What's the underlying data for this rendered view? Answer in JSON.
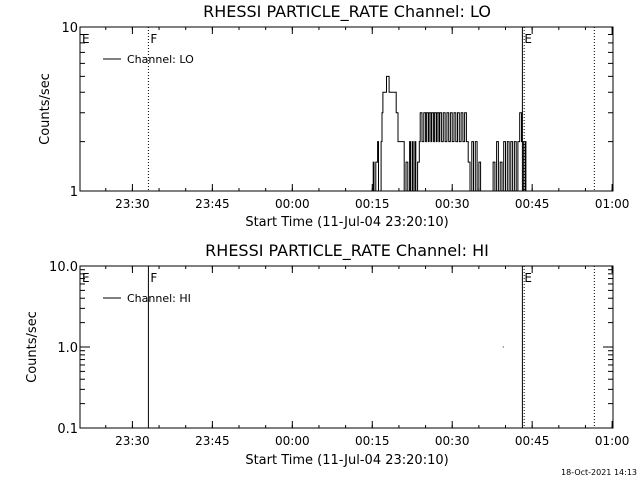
{
  "chart_data": [
    {
      "type": "line",
      "title": "RHESSI PARTICLE_RATE Channel: LO",
      "xlabel": "Start Time (11-Jul-04 23:20:10)",
      "ylabel": "Counts/sec",
      "yscale": "log",
      "ylim": [
        1,
        10
      ],
      "ytick_labels": [
        {
          "value": 1,
          "label": "1"
        },
        {
          "value": 10,
          "label": "10"
        }
      ],
      "xlim": [
        "23:20:10",
        "01:00:10"
      ],
      "xtick_labels": [
        {
          "time": "23:30",
          "label": "23:30"
        },
        {
          "time": "23:45",
          "label": "23:45"
        },
        {
          "time": "00:00",
          "label": "00:00"
        },
        {
          "time": "00:15",
          "label": "00:15"
        },
        {
          "time": "00:30",
          "label": "00:30"
        },
        {
          "time": "00:45",
          "label": "00:45"
        },
        {
          "time": "01:00",
          "label": "01:00"
        }
      ],
      "legend": {
        "placement": "top-left",
        "entries": [
          "Channel: LO"
        ]
      },
      "markers": [
        {
          "time": "23:20:10",
          "label": "E",
          "style": "solid"
        },
        {
          "time": "23:33:00",
          "label": "F",
          "style": "dotted"
        },
        {
          "time": "00:43:10",
          "label": "E",
          "style": "solid"
        },
        {
          "time": "00:43:30",
          "label": "",
          "style": "dotted"
        },
        {
          "time": "00:56:40",
          "label": "",
          "style": "dotted"
        }
      ],
      "series": [
        {
          "name": "Channel: LO",
          "points": [
            [
              "00:15:10",
              1
            ],
            [
              "00:15:10",
              1.5
            ],
            [
              "00:15:20",
              1.5
            ],
            [
              "00:15:20",
              1
            ],
            [
              "00:15:40",
              1
            ],
            [
              "00:15:40",
              1.5
            ],
            [
              "00:16:00",
              1.5
            ],
            [
              "00:16:00",
              2
            ],
            [
              "00:16:10",
              2
            ],
            [
              "00:16:10",
              1
            ],
            [
              "00:16:40",
              1
            ],
            [
              "00:16:40",
              2
            ],
            [
              "00:16:50",
              2
            ],
            [
              "00:16:50",
              3
            ],
            [
              "00:17:00",
              3
            ],
            [
              "00:17:00",
              4
            ],
            [
              "00:17:40",
              4
            ],
            [
              "00:17:40",
              5
            ],
            [
              "00:18:10",
              5
            ],
            [
              "00:18:10",
              4
            ],
            [
              "00:19:30",
              4
            ],
            [
              "00:19:30",
              3
            ],
            [
              "00:19:50",
              3
            ],
            [
              "00:19:50",
              2
            ],
            [
              "00:21:00",
              2
            ],
            [
              "00:21:00",
              1
            ],
            [
              "00:21:20",
              1
            ],
            [
              "00:21:20",
              1.5
            ],
            [
              "00:21:40",
              1.5
            ],
            [
              "00:21:40",
              1
            ],
            [
              "00:22:00",
              1
            ],
            [
              "00:22:00",
              2
            ],
            [
              "00:22:10",
              2
            ],
            [
              "00:22:10",
              1
            ],
            [
              "00:22:30",
              1
            ],
            [
              "00:22:30",
              2
            ],
            [
              "00:22:40",
              2
            ],
            [
              "00:22:40",
              1
            ],
            [
              "00:23:00",
              1
            ],
            [
              "00:23:00",
              2
            ],
            [
              "00:23:10",
              2
            ],
            [
              "00:23:10",
              1
            ],
            [
              "00:23:30",
              1
            ],
            [
              "00:23:30",
              1.5
            ],
            [
              "00:23:50",
              1.5
            ],
            [
              "00:23:50",
              2
            ],
            [
              "00:24:00",
              2
            ],
            [
              "00:24:00",
              3
            ],
            [
              "00:24:20",
              3
            ],
            [
              "00:24:20",
              2
            ],
            [
              "00:24:40",
              2
            ],
            [
              "00:24:40",
              3
            ],
            [
              "00:25:00",
              3
            ],
            [
              "00:25:00",
              2
            ],
            [
              "00:25:10",
              2
            ],
            [
              "00:25:10",
              3
            ],
            [
              "00:25:30",
              3
            ],
            [
              "00:25:30",
              2
            ],
            [
              "00:25:40",
              2
            ],
            [
              "00:25:40",
              3
            ],
            [
              "00:26:00",
              3
            ],
            [
              "00:26:00",
              2
            ],
            [
              "00:26:10",
              2
            ],
            [
              "00:26:10",
              3
            ],
            [
              "00:26:30",
              3
            ],
            [
              "00:26:30",
              2
            ],
            [
              "00:26:40",
              2
            ],
            [
              "00:26:40",
              3
            ],
            [
              "00:27:00",
              3
            ],
            [
              "00:27:00",
              2
            ],
            [
              "00:27:10",
              2
            ],
            [
              "00:27:10",
              3
            ],
            [
              "00:27:30",
              3
            ],
            [
              "00:27:30",
              2
            ],
            [
              "00:27:40",
              2
            ],
            [
              "00:27:40",
              3
            ],
            [
              "00:28:00",
              3
            ],
            [
              "00:28:00",
              2
            ],
            [
              "00:28:20",
              2
            ],
            [
              "00:28:20",
              3
            ],
            [
              "00:28:40",
              3
            ],
            [
              "00:28:40",
              2
            ],
            [
              "00:29:00",
              2
            ],
            [
              "00:29:00",
              3
            ],
            [
              "00:29:20",
              3
            ],
            [
              "00:29:20",
              2
            ],
            [
              "00:29:40",
              2
            ],
            [
              "00:29:40",
              3
            ],
            [
              "00:30:00",
              3
            ],
            [
              "00:30:00",
              2
            ],
            [
              "00:30:20",
              2
            ],
            [
              "00:30:20",
              3
            ],
            [
              "00:30:40",
              3
            ],
            [
              "00:30:40",
              2
            ],
            [
              "00:31:00",
              2
            ],
            [
              "00:31:00",
              3
            ],
            [
              "00:31:20",
              3
            ],
            [
              "00:31:20",
              2
            ],
            [
              "00:31:40",
              2
            ],
            [
              "00:31:40",
              3
            ],
            [
              "00:32:00",
              3
            ],
            [
              "00:32:00",
              2
            ],
            [
              "00:32:20",
              2
            ],
            [
              "00:32:20",
              3
            ],
            [
              "00:32:40",
              3
            ],
            [
              "00:32:40",
              2
            ],
            [
              "00:33:00",
              2
            ],
            [
              "00:33:00",
              1.5
            ],
            [
              "00:33:20",
              1.5
            ],
            [
              "00:33:20",
              1
            ],
            [
              "00:33:40",
              1
            ],
            [
              "00:33:40",
              2
            ],
            [
              "00:34:00",
              2
            ],
            [
              "00:34:00",
              1
            ],
            [
              "00:34:20",
              1
            ],
            [
              "00:34:20",
              2
            ],
            [
              "00:34:40",
              2
            ],
            [
              "00:34:40",
              1
            ],
            [
              "00:35:00",
              1
            ],
            [
              "00:35:00",
              1.5
            ],
            [
              "00:35:20",
              1.5
            ],
            [
              "00:35:20",
              1
            ],
            [
              "00:37:40",
              1
            ],
            [
              "00:37:40",
              1.5
            ],
            [
              "00:38:00",
              1.5
            ],
            [
              "00:38:00",
              1
            ],
            [
              "00:38:20",
              1
            ],
            [
              "00:38:20",
              2
            ],
            [
              "00:38:40",
              2
            ],
            [
              "00:38:40",
              1
            ],
            [
              "00:39:00",
              1
            ],
            [
              "00:39:00",
              1.5
            ],
            [
              "00:39:20",
              1.5
            ],
            [
              "00:39:20",
              1
            ],
            [
              "00:39:40",
              1
            ],
            [
              "00:39:40",
              2
            ],
            [
              "00:40:00",
              2
            ],
            [
              "00:40:00",
              1
            ],
            [
              "00:40:20",
              1
            ],
            [
              "00:40:20",
              2
            ],
            [
              "00:40:40",
              2
            ],
            [
              "00:40:40",
              1
            ],
            [
              "00:41:00",
              1
            ],
            [
              "00:41:00",
              2
            ],
            [
              "00:41:20",
              2
            ],
            [
              "00:41:20",
              1
            ],
            [
              "00:41:40",
              1
            ],
            [
              "00:41:40",
              2
            ],
            [
              "00:42:00",
              2
            ],
            [
              "00:42:00",
              1
            ],
            [
              "00:42:20",
              1
            ],
            [
              "00:42:20",
              2
            ],
            [
              "00:42:40",
              2
            ],
            [
              "00:42:40",
              3
            ],
            [
              "00:43:00",
              3
            ],
            [
              "00:43:00",
              2
            ],
            [
              "00:43:20",
              2
            ],
            [
              "00:43:20",
              1
            ],
            [
              "00:43:40",
              1
            ],
            [
              "00:43:40",
              2
            ],
            [
              "00:43:50",
              2
            ],
            [
              "00:43:50",
              1
            ]
          ]
        }
      ]
    },
    {
      "type": "line",
      "title": "RHESSI PARTICLE_RATE Channel: HI",
      "xlabel": "Start Time (11-Jul-04 23:20:10)",
      "ylabel": "Counts/sec",
      "yscale": "log",
      "ylim": [
        0.1,
        10
      ],
      "ytick_labels": [
        {
          "value": 0.1,
          "label": "0.1"
        },
        {
          "value": 1,
          "label": "1.0"
        },
        {
          "value": 10,
          "label": "10.0"
        }
      ],
      "xlim": [
        "23:20:10",
        "01:00:10"
      ],
      "xtick_labels": [
        {
          "time": "23:30",
          "label": "23:30"
        },
        {
          "time": "23:45",
          "label": "23:45"
        },
        {
          "time": "00:00",
          "label": "00:00"
        },
        {
          "time": "00:15",
          "label": "00:15"
        },
        {
          "time": "00:30",
          "label": "00:30"
        },
        {
          "time": "00:45",
          "label": "00:45"
        },
        {
          "time": "01:00",
          "label": "01:00"
        }
      ],
      "legend": {
        "placement": "top-left",
        "entries": [
          "Channel: HI"
        ]
      },
      "markers": [
        {
          "time": "23:20:10",
          "label": "E",
          "style": "solid"
        },
        {
          "time": "23:33:00",
          "label": "F",
          "style": "solid"
        },
        {
          "time": "00:43:10",
          "label": "E",
          "style": "solid"
        },
        {
          "time": "00:43:30",
          "label": "",
          "style": "dotted"
        },
        {
          "time": "00:56:40",
          "label": "",
          "style": "dotted"
        }
      ],
      "series": [
        {
          "name": "Channel: HI",
          "points": [
            [
              "00:39:30",
              1
            ],
            [
              "00:39:40",
              1
            ]
          ]
        }
      ]
    }
  ],
  "footer": {
    "timestamp": "18-Oct-2021 14:13"
  }
}
